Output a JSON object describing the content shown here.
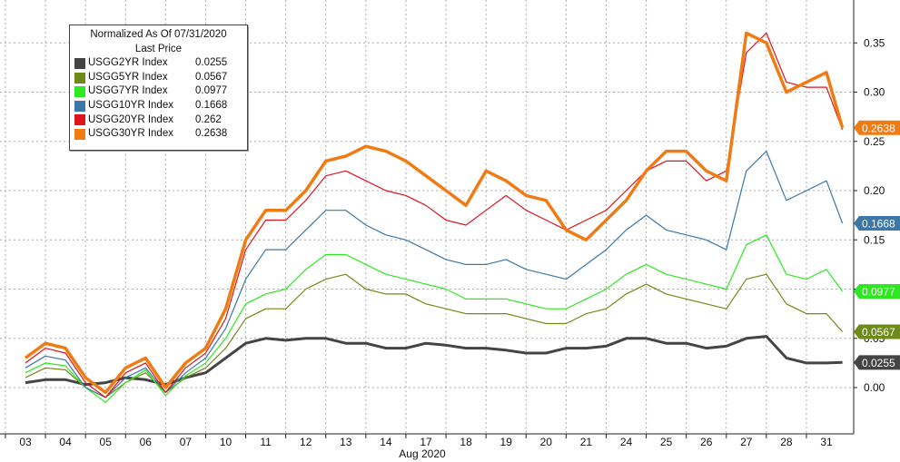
{
  "legend": {
    "title_line1": "Normalized As Of 07/31/2020",
    "title_line2": "Last Price"
  },
  "colors": {
    "USGG2YR Index": "#444444",
    "USGG5YR Index": "#6e8a18",
    "USGG7YR Index": "#2ee81f",
    "USGG10YR Index": "#3b78a8",
    "USGG20YR Index": "#e0141c",
    "USGG30YR Index": "#f07b12"
  },
  "chart_data": {
    "type": "line",
    "xlabel": "Aug 2020",
    "ylabel": "",
    "ylim": [
      -0.045,
      0.385
    ],
    "yticks": [
      0.0,
      0.05,
      0.1,
      0.15,
      0.2,
      0.25,
      0.3,
      0.35
    ],
    "ytick_labels": [
      "0.00",
      "0.05",
      "0.10",
      "0.15",
      "0.20",
      "0.25",
      "0.30",
      "0.35"
    ],
    "grid": true,
    "legend_position": "top-left",
    "categories": [
      "03",
      "04",
      "05",
      "06",
      "07",
      "10",
      "11",
      "12",
      "13",
      "14",
      "17",
      "18",
      "19",
      "20",
      "21",
      "24",
      "25",
      "26",
      "27",
      "28",
      "31"
    ],
    "x": [
      0.0,
      0.5,
      1.0,
      1.5,
      2.0,
      2.5,
      3.0,
      3.5,
      4.0,
      4.5,
      5.0,
      5.5,
      6.0,
      6.5,
      7.0,
      7.5,
      8.0,
      8.5,
      9.0,
      9.5,
      10.0,
      10.5,
      11.0,
      11.5,
      12.0,
      12.5,
      13.0,
      13.5,
      14.0,
      14.5,
      15.0,
      15.5,
      16.0,
      16.5,
      17.0,
      17.5,
      18.0,
      18.5,
      19.0,
      19.5,
      20.0,
      20.4
    ],
    "series": [
      {
        "name": "USGG2YR Index",
        "last": "0.0255",
        "values": [
          0.005,
          0.008,
          0.008,
          0.003,
          0.005,
          0.01,
          0.008,
          0.003,
          0.01,
          0.015,
          0.03,
          0.045,
          0.05,
          0.048,
          0.05,
          0.05,
          0.045,
          0.045,
          0.04,
          0.04,
          0.045,
          0.043,
          0.04,
          0.04,
          0.038,
          0.035,
          0.035,
          0.04,
          0.04,
          0.042,
          0.05,
          0.05,
          0.045,
          0.045,
          0.04,
          0.042,
          0.05,
          0.052,
          0.03,
          0.025,
          0.025,
          0.0255
        ]
      },
      {
        "name": "USGG5YR Index",
        "last": "0.0567",
        "values": [
          0.01,
          0.02,
          0.018,
          0.0,
          -0.01,
          0.005,
          0.015,
          -0.005,
          0.01,
          0.02,
          0.04,
          0.07,
          0.08,
          0.08,
          0.1,
          0.11,
          0.115,
          0.1,
          0.095,
          0.095,
          0.085,
          0.08,
          0.075,
          0.075,
          0.075,
          0.07,
          0.065,
          0.065,
          0.075,
          0.08,
          0.095,
          0.105,
          0.095,
          0.09,
          0.085,
          0.08,
          0.11,
          0.115,
          0.085,
          0.075,
          0.075,
          0.0567
        ]
      },
      {
        "name": "USGG7YR Index",
        "last": "0.0977",
        "values": [
          0.015,
          0.025,
          0.022,
          0.0,
          -0.015,
          0.005,
          0.018,
          -0.008,
          0.012,
          0.025,
          0.05,
          0.085,
          0.095,
          0.1,
          0.12,
          0.135,
          0.135,
          0.125,
          0.115,
          0.11,
          0.105,
          0.1,
          0.09,
          0.09,
          0.09,
          0.085,
          0.08,
          0.08,
          0.09,
          0.1,
          0.115,
          0.125,
          0.115,
          0.11,
          0.105,
          0.1,
          0.145,
          0.155,
          0.115,
          0.11,
          0.12,
          0.0977
        ]
      },
      {
        "name": "USGG10YR Index",
        "last": "0.1668",
        "values": [
          0.02,
          0.032,
          0.028,
          0.0,
          -0.01,
          0.01,
          0.02,
          -0.005,
          0.015,
          0.03,
          0.06,
          0.11,
          0.14,
          0.14,
          0.16,
          0.18,
          0.18,
          0.165,
          0.155,
          0.15,
          0.14,
          0.13,
          0.125,
          0.125,
          0.13,
          0.12,
          0.115,
          0.11,
          0.125,
          0.14,
          0.16,
          0.175,
          0.16,
          0.155,
          0.15,
          0.14,
          0.22,
          0.24,
          0.19,
          0.2,
          0.21,
          0.1668
        ]
      },
      {
        "name": "USGG20YR Index",
        "last": "0.262",
        "values": [
          0.025,
          0.04,
          0.035,
          0.005,
          -0.01,
          0.015,
          0.025,
          -0.005,
          0.02,
          0.035,
          0.07,
          0.14,
          0.17,
          0.17,
          0.19,
          0.215,
          0.22,
          0.21,
          0.2,
          0.195,
          0.185,
          0.17,
          0.165,
          0.18,
          0.195,
          0.18,
          0.17,
          0.16,
          0.17,
          0.18,
          0.2,
          0.22,
          0.23,
          0.23,
          0.21,
          0.22,
          0.34,
          0.36,
          0.31,
          0.305,
          0.305,
          0.262
        ]
      },
      {
        "name": "USGG30YR Index",
        "last": "0.2638",
        "values": [
          0.03,
          0.045,
          0.04,
          0.01,
          -0.005,
          0.02,
          0.03,
          0.0,
          0.025,
          0.04,
          0.08,
          0.15,
          0.18,
          0.18,
          0.2,
          0.23,
          0.235,
          0.245,
          0.24,
          0.23,
          0.215,
          0.2,
          0.185,
          0.22,
          0.21,
          0.195,
          0.19,
          0.16,
          0.15,
          0.17,
          0.19,
          0.22,
          0.24,
          0.24,
          0.22,
          0.21,
          0.36,
          0.35,
          0.3,
          0.31,
          0.32,
          0.2638
        ]
      }
    ]
  }
}
